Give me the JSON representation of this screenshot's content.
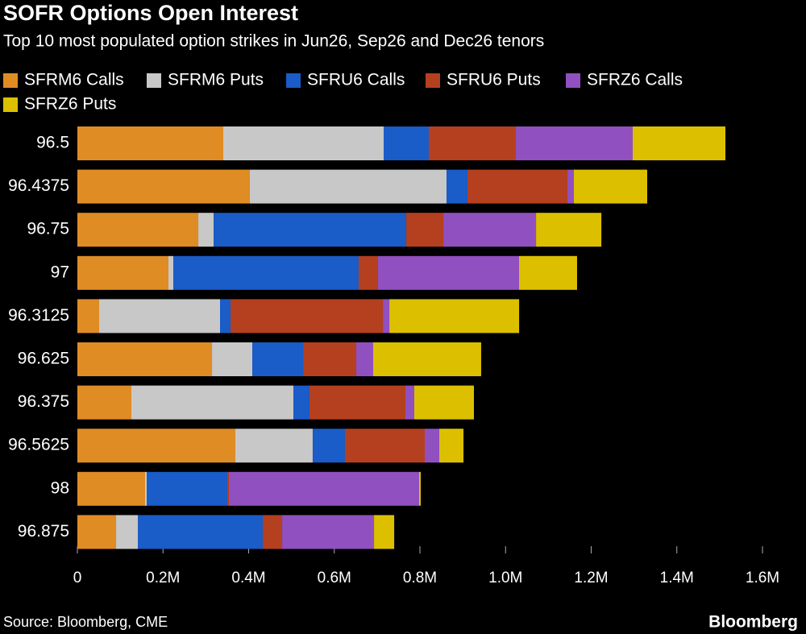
{
  "chart_data": {
    "type": "stacked-barh",
    "title": "SOFR Options Open Interest",
    "subtitle": "Top 10 most populated option strikes in Jun26, Sep26 and Dec26 tenors",
    "source": "Source: Bloomberg, CME",
    "brand": "Bloomberg",
    "categories": [
      "96.5",
      "96.4375",
      "96.75",
      "97",
      "96.3125",
      "96.625",
      "96.375",
      "96.5625",
      "98",
      "96.875"
    ],
    "series": [
      {
        "name": "SFRM6 Calls",
        "color": "#e08c24",
        "values": [
          340700,
          402800,
          282400,
          212700,
          50800,
          314400,
          126100,
          368900,
          158100,
          90400
        ]
      },
      {
        "name": "SFRM6 Puts",
        "color": "#c8c8c8",
        "values": [
          374600,
          459300,
          35800,
          11300,
          282400,
          94100,
          378400,
          180700,
          3800,
          50800
        ]
      },
      {
        "name": "SFRU6 Calls",
        "color": "#1a5cc8",
        "values": [
          105400,
          48900,
          449900,
          432900,
          24500,
          118600,
          37600,
          75300,
          188200,
          291800
        ]
      },
      {
        "name": "SFRU6 Puts",
        "color": "#b5401f",
        "values": [
          203300,
          233400,
          86600,
          45200,
          355800,
          124200,
          224000,
          186400,
          3800,
          45200
        ]
      },
      {
        "name": "SFRZ6 Calls",
        "color": "#9150c0",
        "values": [
          272900,
          15100,
          216500,
          329400,
          15100,
          39500,
          20700,
          33900,
          444200,
          214600
        ]
      },
      {
        "name": "SFRZ6 Puts",
        "color": "#dcc000",
        "values": [
          216500,
          171300,
          152500,
          135500,
          303100,
          252200,
          139300,
          56500,
          3800,
          47100
        ]
      }
    ],
    "xlim": [
      0,
      1600000
    ],
    "xticks": [
      0,
      {
        "value": 200000,
        "label": "0.2M"
      },
      {
        "value": 400000,
        "label": "0.4M"
      },
      {
        "value": 600000,
        "label": "0.6M"
      },
      {
        "value": 800000,
        "label": "0.8M"
      },
      {
        "value": 1000000,
        "label": "1.0M"
      },
      {
        "value": 1200000,
        "label": "1.2M"
      },
      {
        "value": 1400000,
        "label": "1.4M"
      },
      {
        "value": 1600000,
        "label": "1.6M"
      }
    ],
    "legend": "top-left"
  }
}
